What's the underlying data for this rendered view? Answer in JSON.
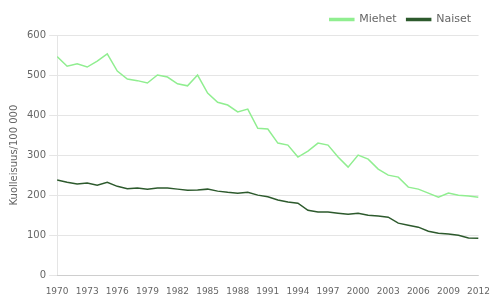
{
  "chart_data": {
    "type": "line",
    "ylabel": "Kuolleisuus/100 000",
    "x": [
      1970,
      1971,
      1972,
      1973,
      1974,
      1975,
      1976,
      1977,
      1978,
      1979,
      1980,
      1981,
      1982,
      1983,
      1984,
      1985,
      1986,
      1987,
      1988,
      1989,
      1990,
      1991,
      1992,
      1993,
      1994,
      1995,
      1996,
      1997,
      1998,
      1999,
      2000,
      2001,
      2002,
      2003,
      2004,
      2005,
      2006,
      2007,
      2008,
      2009,
      2010,
      2011,
      2012
    ],
    "series": [
      {
        "name": "Miehet",
        "color": "#90ee90",
        "values": [
          546,
          522,
          528,
          520,
          535,
          553,
          510,
          490,
          486,
          480,
          500,
          495,
          478,
          473,
          500,
          455,
          432,
          425,
          408,
          415,
          367,
          365,
          330,
          325,
          295,
          310,
          330,
          325,
          295,
          270,
          300,
          290,
          265,
          250,
          245,
          220,
          215,
          205,
          195,
          205,
          200,
          198,
          195
        ]
      },
      {
        "name": "Naiset",
        "color": "#2d5a2d",
        "values": [
          238,
          232,
          228,
          230,
          225,
          232,
          222,
          216,
          218,
          215,
          218,
          218,
          215,
          212,
          213,
          215,
          210,
          207,
          205,
          207,
          200,
          196,
          188,
          183,
          180,
          162,
          158,
          158,
          155,
          152,
          155,
          150,
          148,
          145,
          130,
          125,
          120,
          110,
          105,
          103,
          100,
          93,
          92
        ]
      }
    ],
    "xlim": [
      1970,
      2012
    ],
    "xticks": [
      1970,
      1973,
      1976,
      1979,
      1982,
      1985,
      1988,
      1991,
      1994,
      1997,
      2000,
      2003,
      2006,
      2009,
      2012
    ],
    "ylim": [
      0,
      600
    ],
    "yticks": [
      0,
      100,
      200,
      300,
      400,
      500,
      600
    ],
    "grid": true,
    "legend": "upper right"
  }
}
